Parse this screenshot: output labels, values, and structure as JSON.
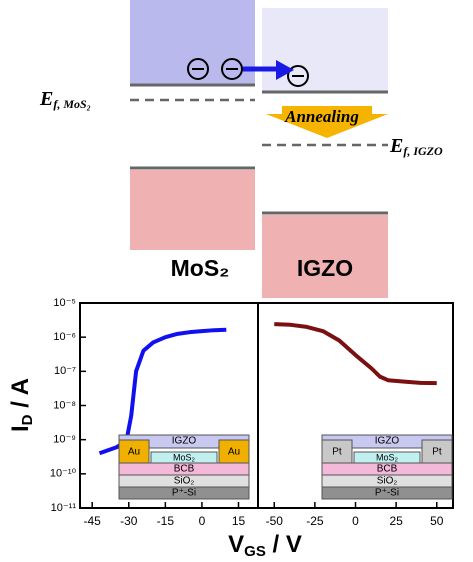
{
  "band_diagram": {
    "ef_mos2": {
      "base": "E",
      "sub": "f, MoS₂"
    },
    "ef_igzo": {
      "base": "E",
      "sub": "f, IGZO"
    },
    "annealing": "Annealing",
    "left_label": "MoS₂",
    "right_label": "IGZO"
  },
  "chart_data": [
    {
      "type": "line",
      "scale": "log",
      "y_label": {
        "base": "I",
        "sub": "D",
        "rest": " / A"
      },
      "x_label": {
        "base": "V",
        "sub": "GS",
        "rest": " / V"
      },
      "x": [
        -42,
        -35,
        -31,
        -29,
        -27,
        -24,
        -20,
        -15,
        -10,
        -5,
        0,
        5,
        10
      ],
      "series": [
        {
          "color": "#1010f0",
          "values": [
            4e-10,
            6e-10,
            9e-10,
            5e-09,
            1e-07,
            4e-07,
            7e-07,
            1e-06,
            1.25e-06,
            1.4e-06,
            1.5e-06,
            1.6e-06,
            1.65e-06
          ]
        }
      ],
      "xlim": [
        -50,
        23
      ],
      "xticks": [
        -45,
        -30,
        -15,
        0,
        15
      ],
      "ylim": [
        1e-11,
        1e-05
      ],
      "yticks": [
        {
          "value": 1e-11,
          "label": "10⁻¹¹"
        },
        {
          "value": 1e-10,
          "label": "10⁻¹⁰"
        },
        {
          "value": 1e-09,
          "label": "10⁻⁹"
        },
        {
          "value": 1e-08,
          "label": "10⁻⁸"
        },
        {
          "value": 1e-07,
          "label": "10⁻⁷"
        },
        {
          "value": 1e-06,
          "label": "10⁻⁶"
        },
        {
          "value": 1e-05,
          "label": "10⁻⁵"
        }
      ],
      "inset": {
        "top": "IGZO",
        "contact": "Au",
        "channel": "MoS₂",
        "layers": [
          "BCB",
          "SiO₂",
          "P⁺-Si"
        ]
      }
    },
    {
      "type": "line",
      "scale": "log",
      "x": [
        -50,
        -40,
        -30,
        -20,
        -10,
        0,
        10,
        15,
        20,
        30,
        40,
        50
      ],
      "series": [
        {
          "color": "#7a1010",
          "values": [
            2.4e-06,
            2.3e-06,
            2e-06,
            1.5e-06,
            8e-07,
            3e-07,
            1.2e-07,
            7e-08,
            5.5e-08,
            5e-08,
            4.6e-08,
            4.5e-08
          ]
        }
      ],
      "xlim": [
        -60,
        60
      ],
      "xticks": [
        -50,
        -25,
        0,
        25,
        50
      ],
      "ylim": [
        1e-11,
        1e-05
      ],
      "inset": {
        "top": "IGZO",
        "contact": "Pt",
        "channel": "MoS₂",
        "layers": [
          "BCB",
          "SiO₂",
          "P⁺-Si"
        ]
      }
    }
  ]
}
